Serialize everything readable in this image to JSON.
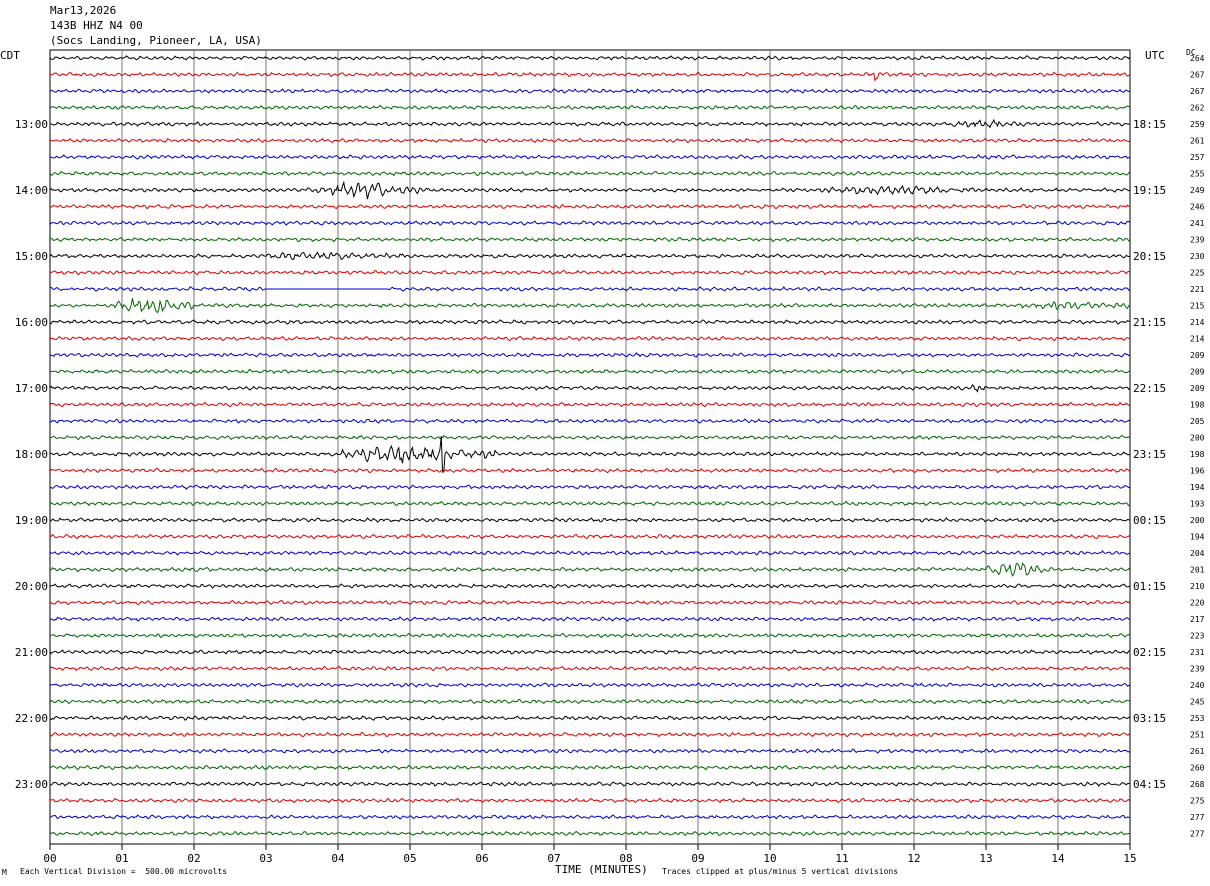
{
  "header": {
    "date": "Mar13,2026",
    "station": "143B HHZ N4 00",
    "location": "(Socs Landing, Pioneer, LA, USA)"
  },
  "left_timezone": "CDT",
  "right_timezone": "UTC",
  "dc_label": "DC",
  "footer": {
    "scale_note": "Each Vertical Division =  500.00 microvolts",
    "xaxis_label": "TIME (MINUTES)",
    "clip_note": "Traces clipped at plus/minus 5 vertical divisions",
    "corner_mark": "M"
  },
  "chart_data": {
    "type": "line",
    "title": "",
    "xlabel": "TIME (MINUTES)",
    "xlim": [
      0,
      15
    ],
    "x_ticks": [
      "00",
      "01",
      "02",
      "03",
      "04",
      "05",
      "06",
      "07",
      "08",
      "09",
      "10",
      "11",
      "12",
      "13",
      "14",
      "15"
    ],
    "n_traces": 48,
    "trace_colors": [
      "#000000",
      "#dd0000",
      "#0000cc",
      "#006600"
    ],
    "left_hour_labels": [
      "13:00",
      "14:00",
      "15:00",
      "16:00",
      "17:00",
      "18:00",
      "19:00",
      "20:00",
      "21:00",
      "22:00",
      "23:00"
    ],
    "right_hour_labels": [
      "18:15",
      "19:15",
      "20:15",
      "21:15",
      "22:15",
      "23:15",
      "00:15",
      "01:15",
      "02:15",
      "03:15",
      "04:15"
    ],
    "dc_values": [
      "264",
      "267",
      "267",
      "262",
      "259",
      "261",
      "257",
      "255",
      "249",
      "246",
      "241",
      "239",
      "230",
      "225",
      "221",
      "215",
      "214",
      "214",
      "209",
      "209",
      "209",
      "198",
      "205",
      "200",
      "198",
      "196",
      "194",
      "193",
      "200",
      "194",
      "204",
      "201",
      "210",
      "220",
      "217",
      "223",
      "231",
      "239",
      "240",
      "245",
      "253",
      "251",
      "261",
      "260",
      "268",
      "275",
      "277",
      "277"
    ],
    "events": [
      {
        "trace": 1,
        "start_min": 11.4,
        "end_min": 11.55,
        "amp": 5
      },
      {
        "trace": 4,
        "start_min": 12.5,
        "end_min": 13.8,
        "amp": 2
      },
      {
        "trace": 8,
        "start_min": 3.7,
        "end_min": 5.2,
        "amp": 6
      },
      {
        "trace": 8,
        "start_min": 10.7,
        "end_min": 12.9,
        "amp": 2.5
      },
      {
        "trace": 12,
        "start_min": 2.8,
        "end_min": 5.0,
        "amp": 2
      },
      {
        "trace": 15,
        "start_min": 0.9,
        "end_min": 2.0,
        "amp": 6
      },
      {
        "trace": 15,
        "start_min": 13.5,
        "end_min": 15.0,
        "amp": 2
      },
      {
        "trace": 20,
        "start_min": 12.8,
        "end_min": 13.0,
        "amp": 3
      },
      {
        "trace": 24,
        "start_min": 4.0,
        "end_min": 6.2,
        "amp": 7
      },
      {
        "trace": 31,
        "start_min": 13.0,
        "end_min": 13.9,
        "amp": 6
      }
    ],
    "flat_segments": [
      {
        "trace": 14,
        "start_min": 3.0,
        "end_min": 4.7
      }
    ],
    "spikes": [
      {
        "trace": 24,
        "minute": 5.45,
        "amp": 18
      }
    ]
  }
}
